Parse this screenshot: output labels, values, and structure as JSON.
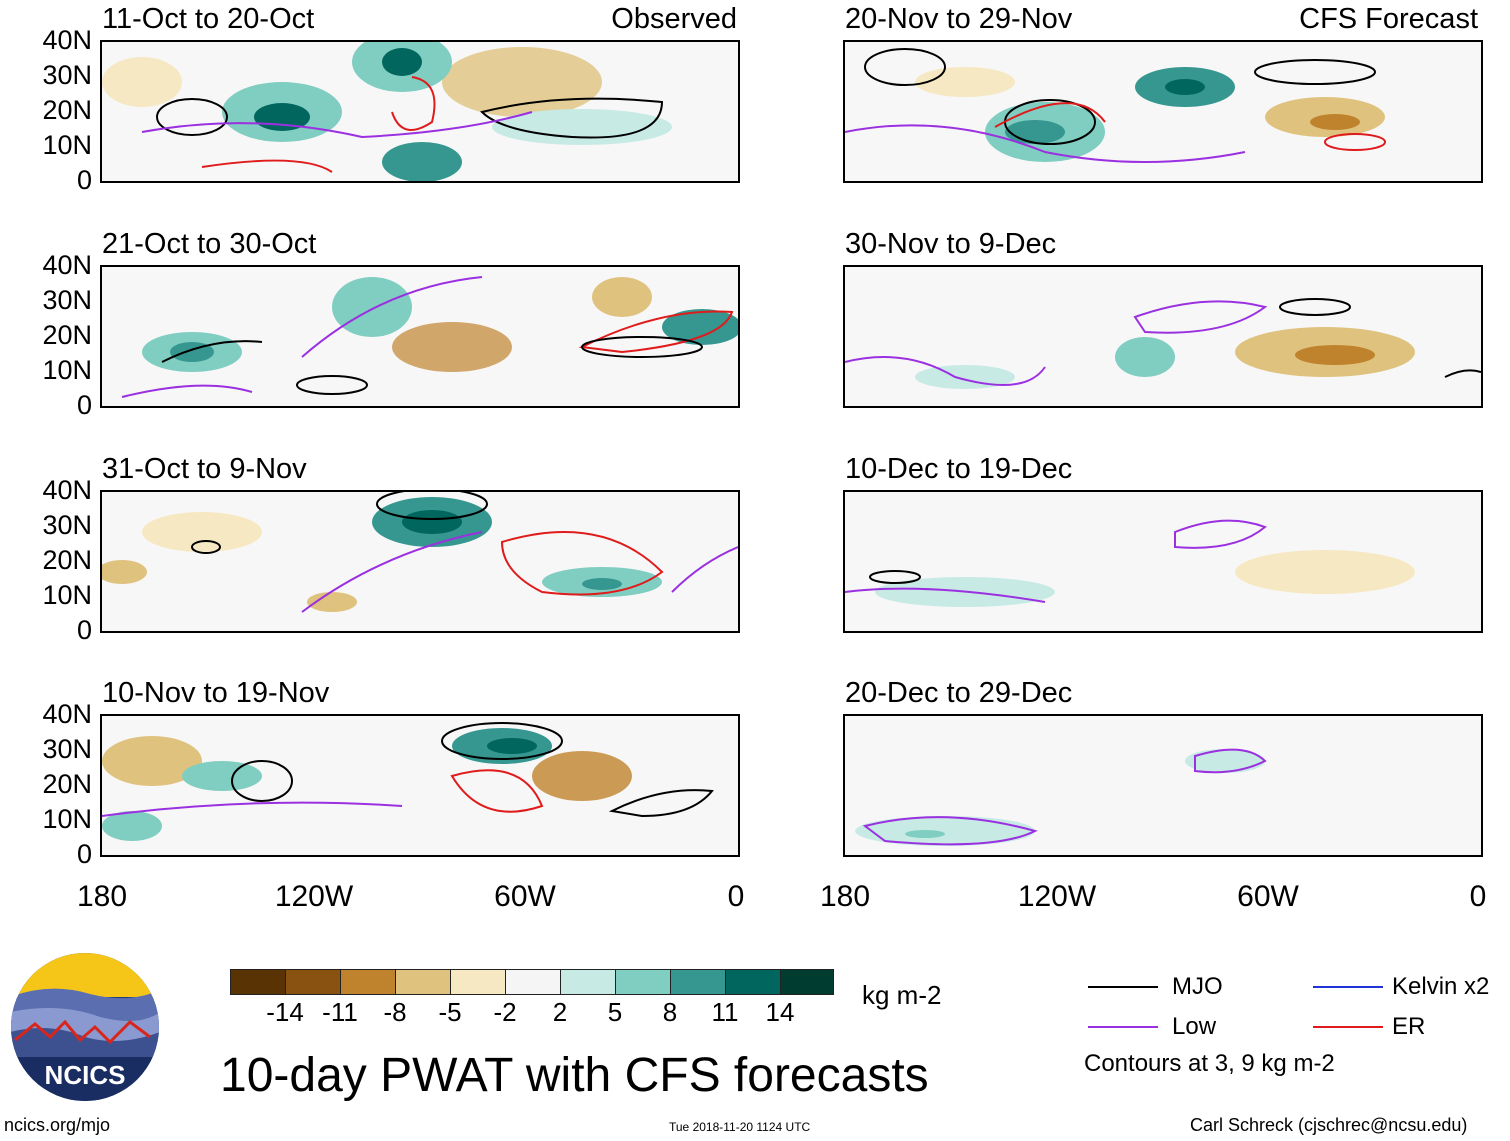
{
  "left_header_tag": "Observed",
  "right_header_tag": "CFS Forecast",
  "lat_labels": [
    "40N",
    "30N",
    "20N",
    "10N",
    "0"
  ],
  "lon_labels": [
    "180",
    "120W",
    "60W",
    "0"
  ],
  "panels_left": [
    {
      "title": "11-Oct to 20-Oct"
    },
    {
      "title": "21-Oct to 30-Oct"
    },
    {
      "title": "31-Oct to 9-Nov"
    },
    {
      "title": "10-Nov to 19-Nov"
    }
  ],
  "panels_right": [
    {
      "title": "20-Nov to 29-Nov"
    },
    {
      "title": "30-Nov to 9-Dec"
    },
    {
      "title": "10-Dec to 19-Dec"
    },
    {
      "title": "20-Dec to 29-Dec"
    }
  ],
  "colorbar": {
    "labels": [
      "-14",
      "-11",
      "-8",
      "-5",
      "-2",
      "2",
      "5",
      "8",
      "11",
      "14"
    ],
    "colors": [
      "#5a3305",
      "#8a5210",
      "#bf832d",
      "#dfc27e",
      "#f6e8c3",
      "#f5f5f5",
      "#c7eae5",
      "#80cdc1",
      "#35978f",
      "#01665e",
      "#003c30"
    ],
    "units": "kg m-2"
  },
  "legend": {
    "items": [
      {
        "label": "MJO",
        "color": "#000000"
      },
      {
        "label": "Kelvin x2",
        "color": "#1f33d6"
      },
      {
        "label": "Low",
        "color": "#9b30e0"
      },
      {
        "label": "ER",
        "color": "#e01b1b"
      }
    ],
    "contours_note": "Contours at 3, 9 kg m-2"
  },
  "logo_text": "NCICS",
  "main_title": "10-day PWAT with CFS forecasts",
  "footer": {
    "url": "ncics.org/mjo",
    "timestamp": "Tue 2018-11-20 1124 UTC",
    "credit": "Carl Schreck (cjschrec@ncsu.edu)"
  }
}
